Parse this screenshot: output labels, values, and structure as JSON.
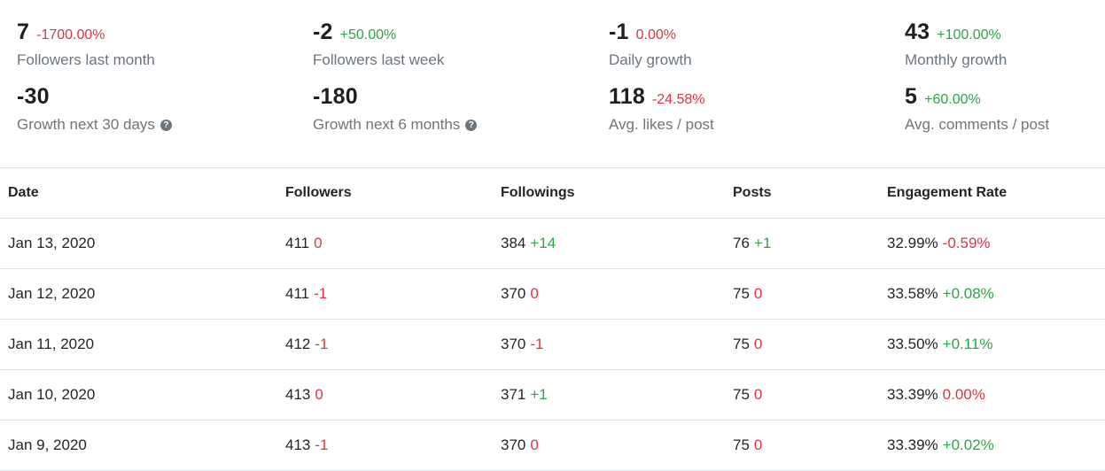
{
  "stats": [
    {
      "value": "7",
      "change": "-1700.00%",
      "change_type": "neg",
      "label": "Followers last month",
      "help": false
    },
    {
      "value": "-2",
      "change": "+50.00%",
      "change_type": "pos",
      "label": "Followers last week",
      "help": false
    },
    {
      "value": "-1",
      "change": "0.00%",
      "change_type": "neg",
      "label": "Daily growth",
      "help": false
    },
    {
      "value": "43",
      "change": "+100.00%",
      "change_type": "pos",
      "label": "Monthly growth",
      "help": false
    },
    {
      "value": "-30",
      "change": "",
      "change_type": "",
      "label": "Growth next 30 days",
      "help": true
    },
    {
      "value": "-180",
      "change": "",
      "change_type": "",
      "label": "Growth next 6 months",
      "help": true
    },
    {
      "value": "118",
      "change": "-24.58%",
      "change_type": "neg",
      "label": "Avg. likes / post",
      "help": false
    },
    {
      "value": "5",
      "change": "+60.00%",
      "change_type": "pos",
      "label": "Avg. comments / post",
      "help": false
    }
  ],
  "table": {
    "headers": [
      "Date",
      "Followers",
      "Followings",
      "Posts",
      "Engagement Rate"
    ],
    "rows": [
      {
        "date": "Jan 13, 2020",
        "followers": "411",
        "followers_d": "0",
        "followers_t": "neg",
        "followings": "384",
        "followings_d": "+14",
        "followings_t": "pos",
        "posts": "76",
        "posts_d": "+1",
        "posts_t": "pos",
        "eng": "32.99%",
        "eng_d": "-0.59%",
        "eng_t": "neg"
      },
      {
        "date": "Jan 12, 2020",
        "followers": "411",
        "followers_d": "-1",
        "followers_t": "neg",
        "followings": "370",
        "followings_d": "0",
        "followings_t": "neg",
        "posts": "75",
        "posts_d": "0",
        "posts_t": "neg",
        "eng": "33.58%",
        "eng_d": "+0.08%",
        "eng_t": "pos"
      },
      {
        "date": "Jan 11, 2020",
        "followers": "412",
        "followers_d": "-1",
        "followers_t": "neg",
        "followings": "370",
        "followings_d": "-1",
        "followings_t": "neg",
        "posts": "75",
        "posts_d": "0",
        "posts_t": "neg",
        "eng": "33.50%",
        "eng_d": "+0.11%",
        "eng_t": "pos"
      },
      {
        "date": "Jan 10, 2020",
        "followers": "413",
        "followers_d": "0",
        "followers_t": "neg",
        "followings": "371",
        "followings_d": "+1",
        "followings_t": "pos",
        "posts": "75",
        "posts_d": "0",
        "posts_t": "neg",
        "eng": "33.39%",
        "eng_d": "0.00%",
        "eng_t": "neg"
      },
      {
        "date": "Jan 9, 2020",
        "followers": "413",
        "followers_d": "-1",
        "followers_t": "neg",
        "followings": "370",
        "followings_d": "0",
        "followings_t": "neg",
        "posts": "75",
        "posts_d": "0",
        "posts_t": "neg",
        "eng": "33.39%",
        "eng_d": "+0.02%",
        "eng_t": "pos"
      }
    ]
  },
  "colors": {
    "positive": "#28a745",
    "negative": "#dc3545",
    "muted": "#6c757d",
    "border": "#dee2e6"
  }
}
